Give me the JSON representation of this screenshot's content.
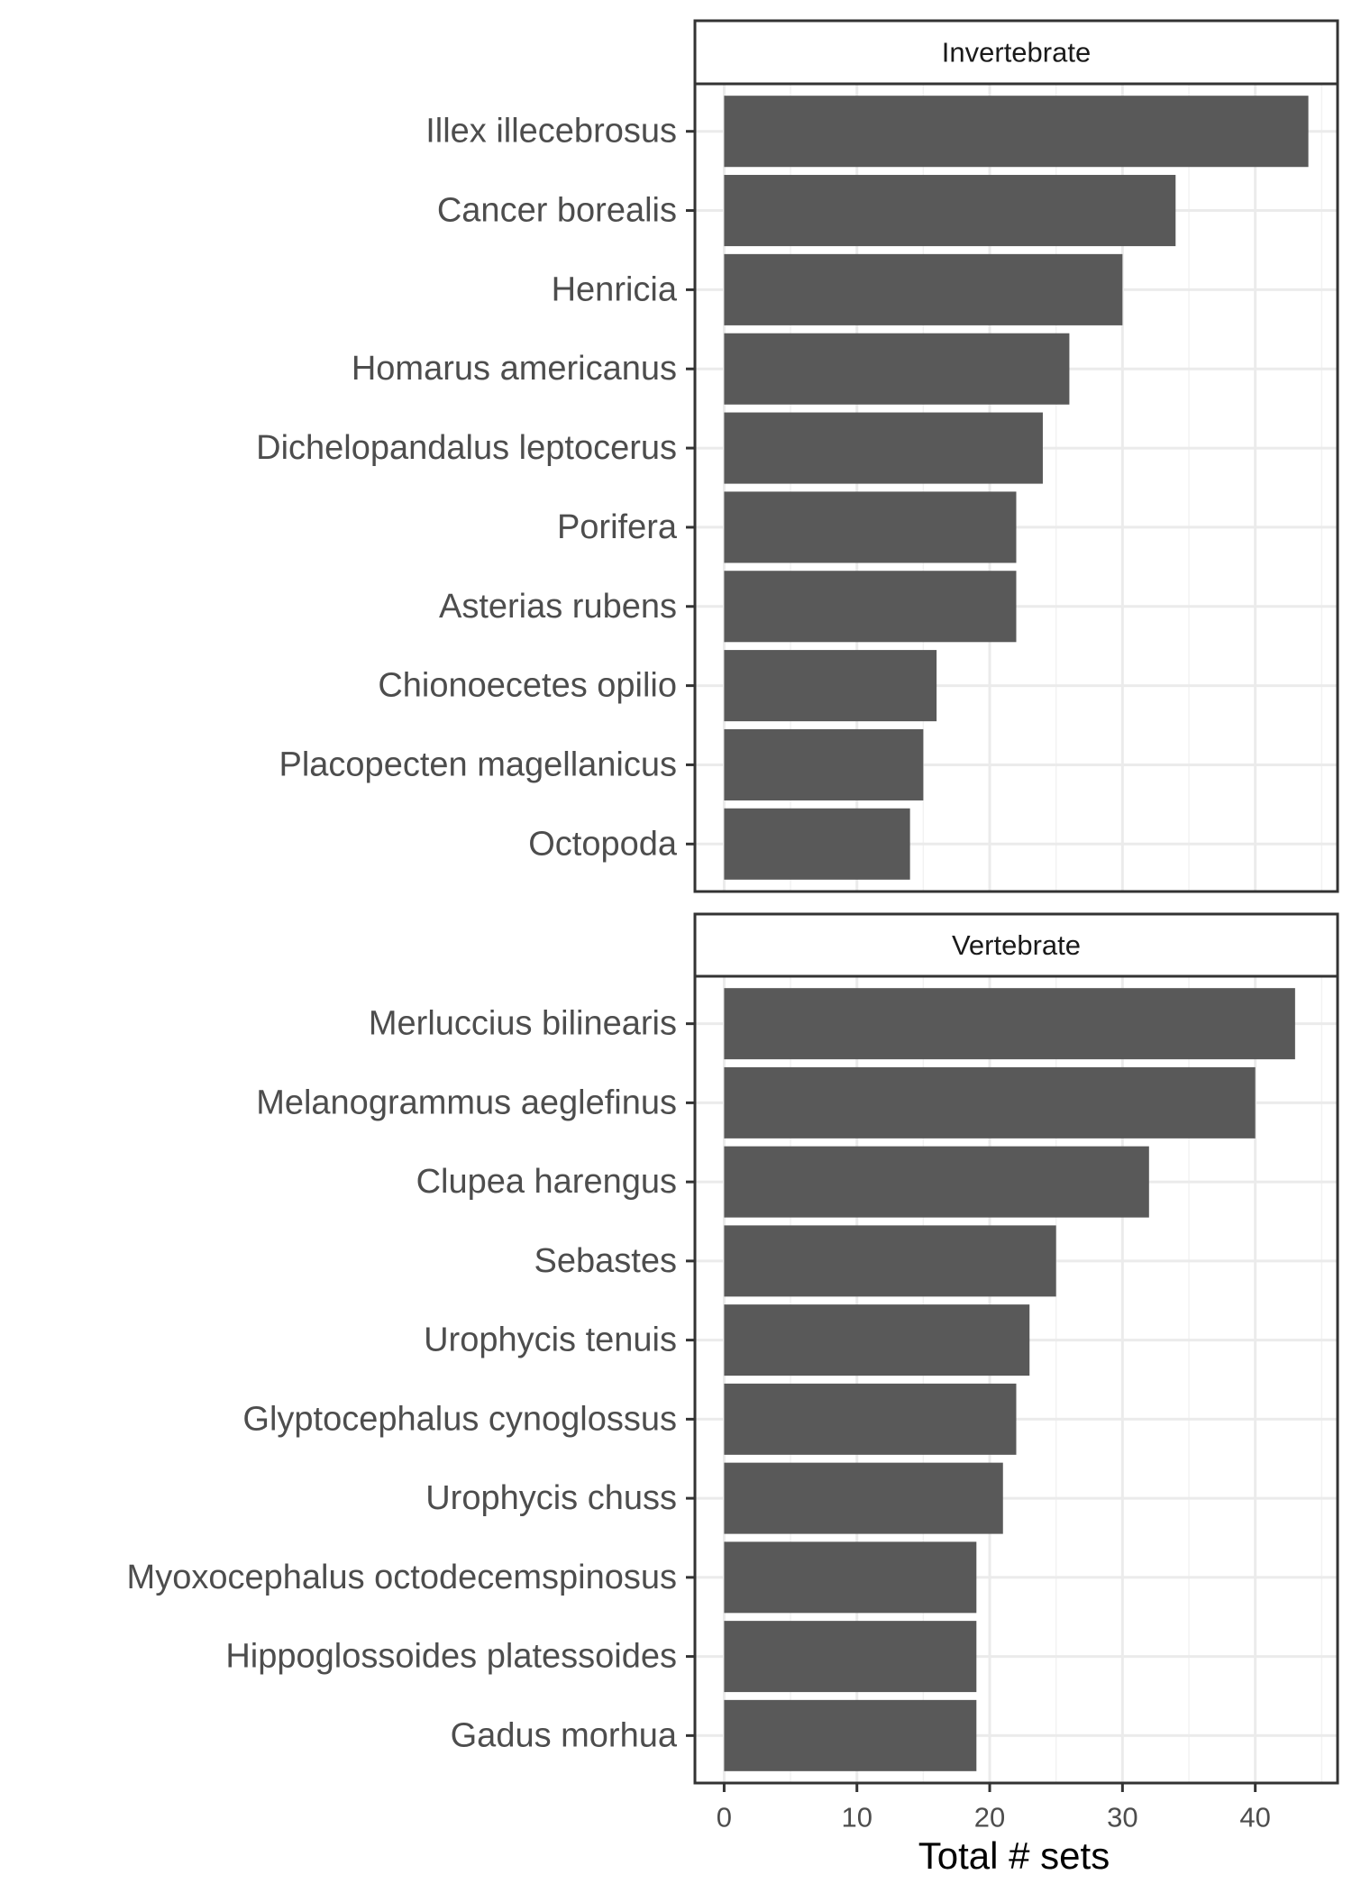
{
  "chart_data": {
    "type": "bar",
    "orientation": "horizontal",
    "xlabel": "Total # sets",
    "ylabel": "",
    "xlim": [
      -2.2,
      46.2
    ],
    "x_ticks": [
      "0",
      "10",
      "20",
      "30",
      "40"
    ],
    "grid": true,
    "facets": [
      {
        "label": "Invertebrate",
        "categories": [
          "Illex illecebrosus",
          "Cancer borealis",
          "Henricia",
          "Homarus americanus",
          "Dichelopandalus leptocerus",
          "Porifera",
          "Asterias rubens",
          "Chionoecetes opilio",
          "Placopecten magellanicus",
          "Octopoda"
        ],
        "values": [
          44,
          34,
          30,
          26,
          24,
          22,
          22,
          16,
          15,
          14
        ]
      },
      {
        "label": "Vertebrate",
        "categories": [
          "Merluccius bilinearis",
          "Melanogrammus aeglefinus",
          "Clupea harengus",
          "Sebastes",
          "Urophycis tenuis",
          "Glyptocephalus cynoglossus",
          "Urophycis chuss",
          "Myoxocephalus octodecemspinosus",
          "Hippoglossoides platessoides",
          "Gadus morhua"
        ],
        "values": [
          43,
          40,
          32,
          25,
          23,
          22,
          21,
          19,
          19,
          19
        ]
      }
    ],
    "colors": {
      "bar": "#595959",
      "grid_major": "#ebebeb",
      "grid_minor": "#f2f2f2",
      "panel_border": "#333333",
      "strip_fill": "#ffffff"
    }
  }
}
